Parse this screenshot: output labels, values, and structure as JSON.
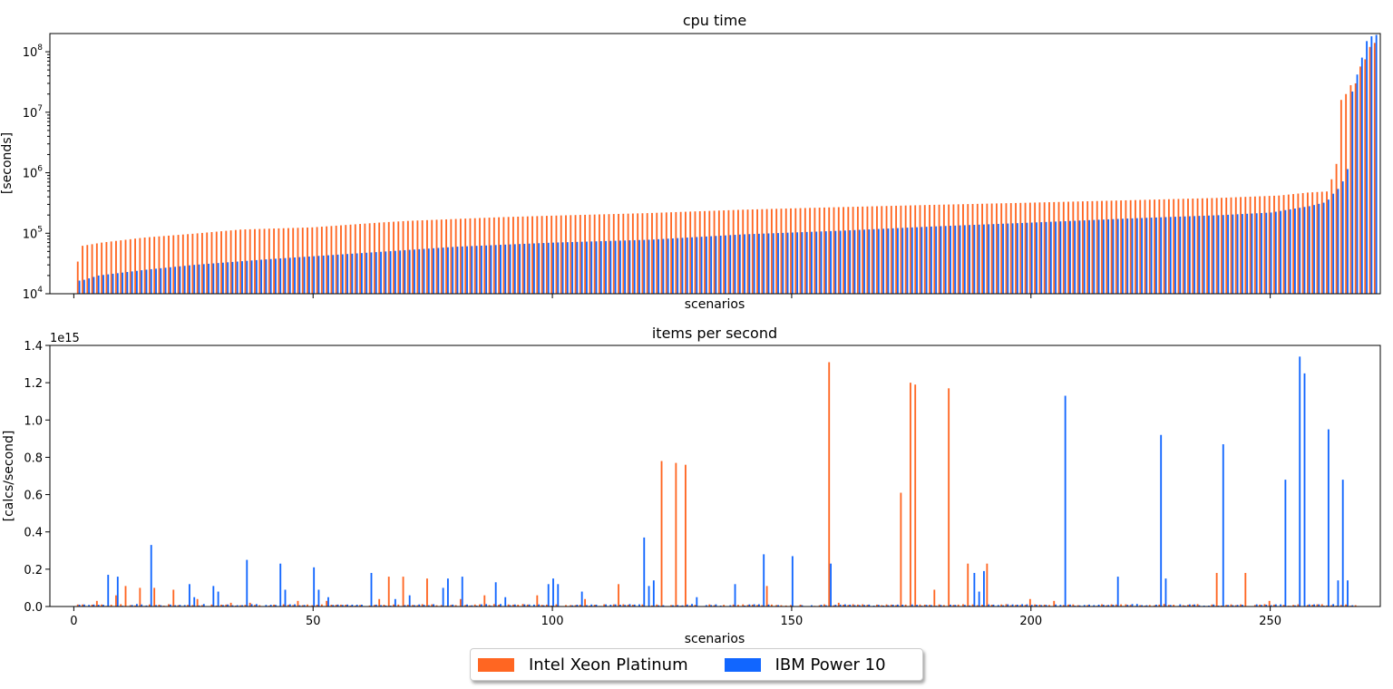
{
  "colors": {
    "intel": "#ff6622",
    "ibm": "#1166ff"
  },
  "legend": {
    "intel_label": "Intel Xeon Platinum",
    "ibm_label": "IBM Power 10"
  },
  "chart_data": [
    {
      "type": "bar",
      "title": "cpu time",
      "xlabel": "scenarios",
      "ylabel": "[seconds]",
      "yscale": "log",
      "ylim": [
        10000,
        200000000
      ],
      "yticks": [
        10000,
        100000,
        1000000,
        10000000,
        100000000
      ],
      "ytick_labels": [
        [
          "10",
          "4"
        ],
        [
          "10",
          "5"
        ],
        [
          "10",
          "6"
        ],
        [
          "10",
          "7"
        ],
        [
          "10",
          "8"
        ]
      ],
      "xlim": [
        -5,
        273
      ],
      "xticks": [
        0,
        50,
        100,
        150,
        200,
        250
      ],
      "show_xtick_labels": false,
      "n_scenarios": 272,
      "series": [
        {
          "name": "Intel Xeon Platinum",
          "color_key": "intel",
          "sorted_curve": [
            [
              0,
              34000
            ],
            [
              1,
              34000
            ],
            [
              2,
              62000
            ],
            [
              6,
              70000
            ],
            [
              15,
              85000
            ],
            [
              25,
              98000
            ],
            [
              35,
              115000
            ],
            [
              50,
              125000
            ],
            [
              64,
              150000
            ],
            [
              70,
              160000
            ],
            [
              90,
              185000
            ],
            [
              100,
              195000
            ],
            [
              120,
              215000
            ],
            [
              140,
              245000
            ],
            [
              160,
              270000
            ],
            [
              180,
              295000
            ],
            [
              200,
              320000
            ],
            [
              220,
              350000
            ],
            [
              240,
              385000
            ],
            [
              252,
              420000
            ],
            [
              258,
              470000
            ],
            [
              262,
              490000
            ],
            [
              263,
              780000
            ],
            [
              264,
              1400000
            ],
            [
              265,
              16000000
            ],
            [
              266,
              20000000
            ],
            [
              267,
              28000000
            ],
            [
              268,
              30000000
            ],
            [
              269,
              57000000
            ],
            [
              270,
              75000000
            ],
            [
              271,
              120000000
            ],
            [
              272,
              140000000
            ]
          ],
          "dips": [
            [
              225,
              10000
            ],
            [
              235,
              10000
            ]
          ]
        },
        {
          "name": "IBM Power 10",
          "color_key": "ibm",
          "sorted_curve": [
            [
              0,
              16000
            ],
            [
              2,
              17000
            ],
            [
              5,
              20000
            ],
            [
              15,
              25000
            ],
            [
              25,
              30000
            ],
            [
              40,
              37000
            ],
            [
              60,
              47000
            ],
            [
              80,
              60000
            ],
            [
              100,
              70000
            ],
            [
              120,
              78000
            ],
            [
              140,
              96000
            ],
            [
              160,
              110000
            ],
            [
              180,
              130000
            ],
            [
              200,
              150000
            ],
            [
              220,
              175000
            ],
            [
              240,
              200000
            ],
            [
              250,
              220000
            ],
            [
              258,
              280000
            ],
            [
              261,
              320000
            ],
            [
              262,
              360000
            ],
            [
              263,
              450000
            ],
            [
              264,
              540000
            ],
            [
              265,
              720000
            ],
            [
              266,
              1150000
            ],
            [
              267,
              22000000
            ],
            [
              268,
              42000000
            ],
            [
              269,
              80000000
            ],
            [
              270,
              150000000
            ],
            [
              271,
              180000000
            ],
            [
              272,
              190000000
            ]
          ],
          "dips": []
        }
      ]
    },
    {
      "type": "bar",
      "title": "items per second",
      "xlabel": "scenarios",
      "ylabel": "[calcs/second]",
      "offset_text": "1e15",
      "ylim": [
        0,
        1400000000000000.0
      ],
      "yticks": [
        0,
        200000000000000.0,
        400000000000000.0,
        600000000000000.0,
        800000000000000.0,
        1000000000000000.0,
        1200000000000000.0,
        1400000000000000.0
      ],
      "ytick_labels": [
        "0.0",
        "0.2",
        "0.4",
        "0.6",
        "0.8",
        "1.0",
        "1.2",
        "1.4"
      ],
      "xlim": [
        -5,
        273
      ],
      "xticks": [
        0,
        50,
        100,
        150,
        200,
        250
      ],
      "xtick_labels": [
        "0",
        "50",
        "100",
        "150",
        "200",
        "250"
      ],
      "n_scenarios": 268,
      "series": [
        {
          "name": "Intel Xeon Platinum",
          "color_key": "intel",
          "peaks": [
            [
              5,
              0.03
            ],
            [
              9,
              0.06
            ],
            [
              11,
              0.11
            ],
            [
              14,
              0.1
            ],
            [
              17,
              0.1
            ],
            [
              21,
              0.09
            ],
            [
              26,
              0.04
            ],
            [
              33,
              0.02
            ],
            [
              37,
              0.02
            ],
            [
              47,
              0.03
            ],
            [
              53,
              0.03
            ],
            [
              64,
              0.04
            ],
            [
              66,
              0.16
            ],
            [
              69,
              0.16
            ],
            [
              74,
              0.15
            ],
            [
              81,
              0.04
            ],
            [
              86,
              0.06
            ],
            [
              97,
              0.06
            ],
            [
              107,
              0.04
            ],
            [
              114,
              0.12
            ],
            [
              123,
              0.78
            ],
            [
              126,
              0.77
            ],
            [
              128,
              0.76
            ],
            [
              145,
              0.11
            ],
            [
              158,
              1.31
            ],
            [
              160,
              0.02
            ],
            [
              173,
              0.61
            ],
            [
              175,
              1.2
            ],
            [
              176,
              1.19
            ],
            [
              180,
              0.09
            ],
            [
              183,
              1.17
            ],
            [
              187,
              0.23
            ],
            [
              191,
              0.23
            ],
            [
              200,
              0.04
            ],
            [
              205,
              0.03
            ],
            [
              239,
              0.18
            ],
            [
              245,
              0.18
            ],
            [
              250,
              0.03
            ]
          ]
        },
        {
          "name": "IBM Power 10",
          "color_key": "ibm",
          "peaks": [
            [
              7,
              0.17
            ],
            [
              9,
              0.16
            ],
            [
              16,
              0.33
            ],
            [
              24,
              0.12
            ],
            [
              25,
              0.05
            ],
            [
              29,
              0.11
            ],
            [
              30,
              0.08
            ],
            [
              36,
              0.25
            ],
            [
              43,
              0.23
            ],
            [
              44,
              0.09
            ],
            [
              50,
              0.21
            ],
            [
              51,
              0.09
            ],
            [
              53,
              0.05
            ],
            [
              62,
              0.18
            ],
            [
              67,
              0.04
            ],
            [
              70,
              0.06
            ],
            [
              77,
              0.1
            ],
            [
              78,
              0.15
            ],
            [
              81,
              0.16
            ],
            [
              88,
              0.13
            ],
            [
              90,
              0.05
            ],
            [
              99,
              0.12
            ],
            [
              100,
              0.15
            ],
            [
              101,
              0.12
            ],
            [
              106,
              0.08
            ],
            [
              119,
              0.37
            ],
            [
              120,
              0.11
            ],
            [
              121,
              0.14
            ],
            [
              130,
              0.05
            ],
            [
              138,
              0.12
            ],
            [
              144,
              0.28
            ],
            [
              150,
              0.27
            ],
            [
              158,
              0.23
            ],
            [
              188,
              0.18
            ],
            [
              189,
              0.08
            ],
            [
              190,
              0.19
            ],
            [
              207,
              1.13
            ],
            [
              218,
              0.16
            ],
            [
              227,
              0.92
            ],
            [
              228,
              0.15
            ],
            [
              240,
              0.87
            ],
            [
              253,
              0.68
            ],
            [
              256,
              1.34
            ],
            [
              257,
              1.25
            ],
            [
              262,
              0.95
            ],
            [
              264,
              0.14
            ],
            [
              265,
              0.68
            ],
            [
              266,
              0.14
            ]
          ]
        }
      ]
    }
  ]
}
